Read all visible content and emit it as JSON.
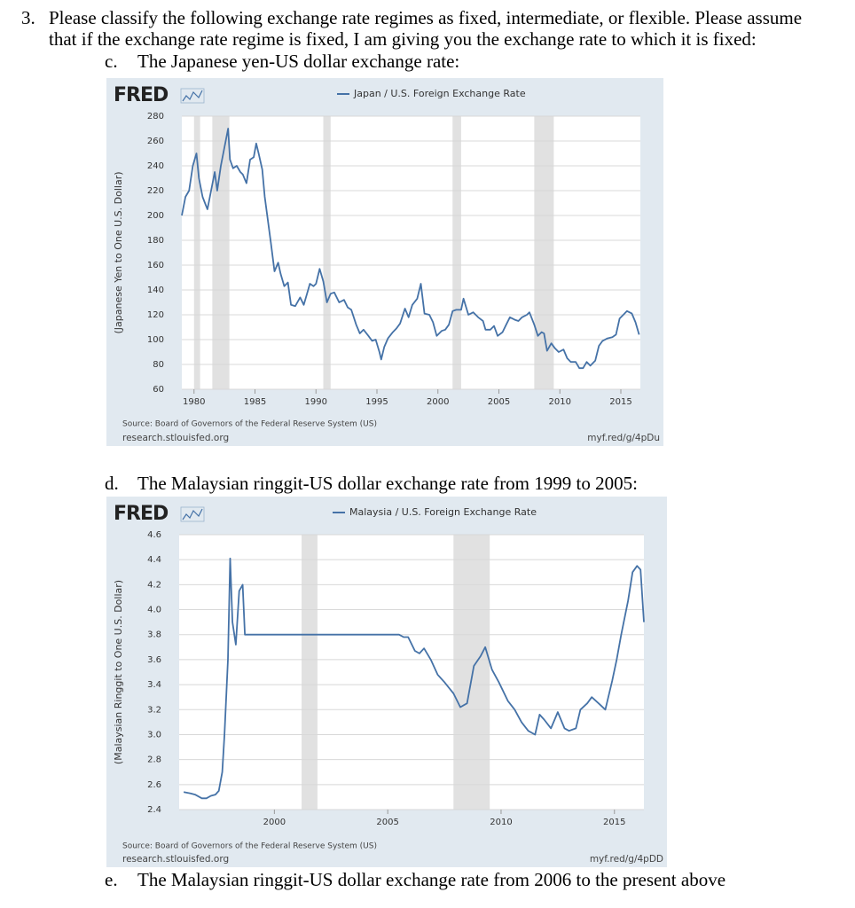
{
  "question": {
    "number": "3.",
    "lines": [
      "Please classify the following exchange rate regimes as fixed, intermediate, or flexible.  Please assume",
      "that if the exchange rate regime is fixed, I am giving you the exchange rate to which it is fixed:"
    ]
  },
  "items": [
    {
      "letter": "c.",
      "text": "The Japanese yen-US dollar exchange rate:"
    },
    {
      "letter": "d.",
      "text": "The Malaysian ringgit-US dollar exchange rate from 1999 to 2005:"
    },
    {
      "letter": "e.",
      "text": "The Malaysian ringgit-US dollar exchange rate from 2006 to the present above"
    }
  ],
  "chart_data": [
    {
      "type": "line",
      "logo": "FRED",
      "y_label": "(Japanese Yen to One U.S. Dollar)",
      "source": "Source: Board of Governors of the Federal Reserve System (US)",
      "site": "research.stlouisfed.org",
      "url": "myf.red/g/4pDu",
      "xlim": [
        1979.0,
        2016.6
      ],
      "ylim": [
        60,
        280
      ],
      "xticks": [
        1980,
        1985,
        1990,
        1995,
        2000,
        2005,
        2010,
        2015
      ],
      "yticks": [
        60,
        80,
        100,
        120,
        140,
        160,
        180,
        200,
        220,
        240,
        260,
        280
      ],
      "grid": true,
      "shading_color": "#e1e1e1",
      "shading": [
        [
          1980.0,
          1980.5
        ],
        [
          1981.5,
          1982.9
        ],
        [
          1990.6,
          1991.2
        ],
        [
          2001.2,
          2001.9
        ],
        [
          2007.9,
          2009.5
        ]
      ],
      "x": [
        1979.0,
        1979.3,
        1979.6,
        1979.9,
        1980.2,
        1980.4,
        1980.7,
        1980.9,
        1981.1,
        1981.4,
        1981.7,
        1981.9,
        1982.2,
        1982.5,
        1982.8,
        1982.95,
        1983.2,
        1983.5,
        1983.8,
        1984.0,
        1984.3,
        1984.6,
        1984.9,
        1985.1,
        1985.3,
        1985.6,
        1985.8,
        1986.0,
        1986.3,
        1986.6,
        1986.9,
        1987.1,
        1987.4,
        1987.7,
        1987.95,
        1988.3,
        1988.7,
        1989.0,
        1989.3,
        1989.5,
        1989.8,
        1990.0,
        1990.3,
        1990.6,
        1990.9,
        1991.2,
        1991.5,
        1991.9,
        1992.3,
        1992.6,
        1992.9,
        1993.3,
        1993.6,
        1993.9,
        1994.3,
        1994.6,
        1994.9,
        1995.2,
        1995.35,
        1995.6,
        1995.9,
        1996.3,
        1996.6,
        1996.9,
        1997.3,
        1997.6,
        1997.9,
        1998.3,
        1998.6,
        1998.9,
        1999.3,
        1999.6,
        1999.9,
        2000.3,
        2000.6,
        2000.9,
        2001.2,
        2001.5,
        2001.9,
        2002.1,
        2002.5,
        2002.9,
        2003.3,
        2003.7,
        2003.9,
        2004.3,
        2004.6,
        2004.9,
        2005.3,
        2005.6,
        2005.9,
        2006.3,
        2006.6,
        2006.9,
        2007.3,
        2007.5,
        2007.9,
        2008.2,
        2008.5,
        2008.7,
        2008.95,
        2009.3,
        2009.6,
        2009.9,
        2010.3,
        2010.6,
        2010.9,
        2011.3,
        2011.6,
        2011.9,
        2012.2,
        2012.5,
        2012.9,
        2013.2,
        2013.5,
        2013.9,
        2014.3,
        2014.6,
        2014.9,
        2015.2,
        2015.5,
        2015.9,
        2016.2,
        2016.5
      ],
      "series": [
        {
          "name": "Japan / U.S. Foreign Exchange Rate",
          "color": "#4572a7",
          "values": [
            200,
            215,
            220,
            240,
            250,
            230,
            215,
            210,
            205,
            220,
            235,
            220,
            240,
            255,
            270,
            245,
            238,
            240,
            235,
            233,
            226,
            245,
            247,
            258,
            250,
            237,
            215,
            200,
            178,
            155,
            162,
            153,
            143,
            146,
            128,
            127,
            134,
            128,
            138,
            145,
            143,
            145,
            157,
            147,
            130,
            137,
            138,
            130,
            132,
            126,
            124,
            112,
            105,
            108,
            103,
            99,
            100,
            90,
            84,
            94,
            101,
            106,
            109,
            113,
            125,
            118,
            128,
            133,
            145,
            121,
            120,
            114,
            103,
            107,
            108,
            112,
            123,
            124,
            124,
            133,
            120,
            122,
            118,
            115,
            108,
            108,
            111,
            103,
            106,
            112,
            118,
            116,
            115,
            118,
            120,
            122,
            112,
            103,
            106,
            105,
            91,
            97,
            93,
            90,
            92,
            85,
            82,
            82,
            77,
            77,
            82,
            79,
            83,
            95,
            99,
            101,
            102,
            104,
            117,
            120,
            123,
            121,
            114,
            104
          ]
        }
      ]
    },
    {
      "type": "line",
      "logo": "FRED",
      "y_label": "(Malaysian Ringgit to One U.S. Dollar)",
      "source": "Source: Board of Governors of the Federal Reserve System (US)",
      "site": "research.stlouisfed.org",
      "url": "myf.red/g/4pDD",
      "xlim": [
        1995.8,
        2016.3
      ],
      "ylim": [
        2.4,
        4.6
      ],
      "xticks": [
        2000,
        2005,
        2010,
        2015
      ],
      "yticks": [
        2.4,
        2.6,
        2.8,
        {
          "value": 3,
          "label": "3.0"
        },
        3.2,
        3.4,
        3.6,
        3.8,
        {
          "value": 4,
          "label": "4.0"
        },
        4.2,
        4.4,
        4.6
      ],
      "grid": true,
      "shading_color": "#e1e1e1",
      "shading": [
        [
          2001.2,
          2001.9
        ],
        [
          2007.9,
          2009.5
        ]
      ],
      "x": [
        1996.0,
        1996.3,
        1996.5,
        1996.8,
        1997.0,
        1997.2,
        1997.4,
        1997.55,
        1997.7,
        1997.8,
        1997.95,
        1998.05,
        1998.15,
        1998.3,
        1998.45,
        1998.6,
        1998.7,
        2005.5,
        2005.7,
        2005.9,
        2006.2,
        2006.4,
        2006.6,
        2006.9,
        2007.2,
        2007.5,
        2007.9,
        2008.2,
        2008.5,
        2008.8,
        2009.1,
        2009.3,
        2009.6,
        2009.9,
        2010.3,
        2010.6,
        2010.9,
        2011.2,
        2011.5,
        2011.7,
        2011.9,
        2012.2,
        2012.5,
        2012.8,
        2013.0,
        2013.3,
        2013.5,
        2013.8,
        2014.0,
        2014.3,
        2014.6,
        2014.9,
        2015.1,
        2015.3,
        2015.6,
        2015.8,
        2016.0,
        2016.15,
        2016.3
      ],
      "series": [
        {
          "name": "Malaysia / U.S. Foreign Exchange Rate",
          "color": "#4572a7",
          "values": [
            2.54,
            2.53,
            2.52,
            2.49,
            2.49,
            2.51,
            2.52,
            2.55,
            2.7,
            3.0,
            3.6,
            4.41,
            3.9,
            3.72,
            4.15,
            4.2,
            3.8,
            3.8,
            3.78,
            3.78,
            3.67,
            3.65,
            3.69,
            3.6,
            3.48,
            3.42,
            3.33,
            3.22,
            3.25,
            3.55,
            3.63,
            3.7,
            3.52,
            3.42,
            3.27,
            3.2,
            3.1,
            3.03,
            3.0,
            3.16,
            3.12,
            3.05,
            3.18,
            3.05,
            3.03,
            3.05,
            3.2,
            3.25,
            3.3,
            3.25,
            3.2,
            3.43,
            3.6,
            3.8,
            4.07,
            4.3,
            4.35,
            4.32,
            3.9
          ]
        }
      ]
    }
  ]
}
